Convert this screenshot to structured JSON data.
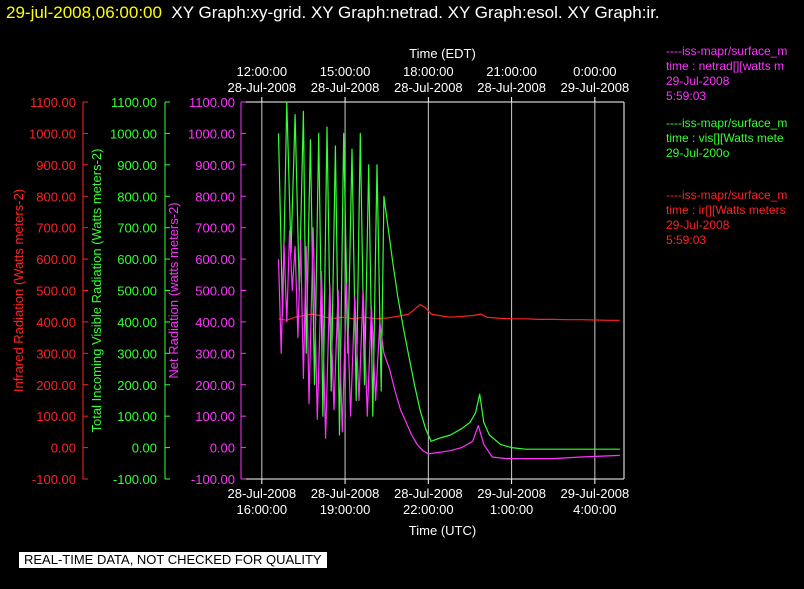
{
  "header": {
    "timestamp": "29-jul-2008,06:00:00",
    "titles": "XY Graph:xy-grid.  XY Graph:netrad.  XY Graph:esol.  XY Graph:ir."
  },
  "legend": [
    {
      "color": "#ff33ff",
      "lines": [
        "----iss-mapr/surface_m",
        "time : netrad[][watts m",
        "29-Jul-2008",
        "5:59:03"
      ]
    },
    {
      "color": "#33ff33",
      "lines": [
        "----iss-mapr/surface_m",
        "time : vis[][Watts mete",
        "29-Jul-200o"
      ]
    },
    {
      "color": "#ff2222",
      "lines": [
        "----iss-mapr/surface_m",
        "time : ir[][Watts meters",
        "29-Jul-2008",
        "5:59:03"
      ]
    }
  ],
  "notice": "REAL-TIME DATA, NOT CHECKED FOR QUALITY",
  "chart_data": {
    "type": "line",
    "top_axis_title": "Time (EDT)",
    "bottom_axis_title": "Time (UTC)",
    "x_range_utc_hours": [
      15.25,
      29.05
    ],
    "top_ticks": [
      {
        "h": 16,
        "lines": [
          "12:00:00",
          "28-Jul-2008"
        ]
      },
      {
        "h": 19,
        "lines": [
          "15:00:00",
          "28-Jul-2008"
        ]
      },
      {
        "h": 22,
        "lines": [
          "18:00:00",
          "28-Jul-2008"
        ]
      },
      {
        "h": 25,
        "lines": [
          "21:00:00",
          "28-Jul-2008"
        ]
      },
      {
        "h": 28,
        "lines": [
          "0:00:00",
          "29-Jul-2008"
        ]
      }
    ],
    "bottom_ticks": [
      {
        "h": 16,
        "lines": [
          "28-Jul-2008",
          "16:00:00"
        ]
      },
      {
        "h": 19,
        "lines": [
          "28-Jul-2008",
          "19:00:00"
        ]
      },
      {
        "h": 22,
        "lines": [
          "28-Jul-2008",
          "22:00:00"
        ]
      },
      {
        "h": 25,
        "lines": [
          "29-Jul-2008",
          "1:00:00"
        ]
      },
      {
        "h": 28,
        "lines": [
          "29-Jul-2008",
          "4:00:00"
        ]
      }
    ],
    "y_range": [
      -100,
      1100
    ],
    "y_ticks": [
      -100,
      0,
      100,
      200,
      300,
      400,
      500,
      600,
      700,
      800,
      900,
      1000,
      1100
    ],
    "grid": "vertical",
    "y_axes": [
      {
        "label": "Infrared Radiation (Watts meters-2)",
        "color": "#ff2222"
      },
      {
        "label": "Total Incoming Visible Radiation (Watts meters-2)",
        "color": "#33ff33"
      },
      {
        "label": "Net Radiation (watts meters-2)",
        "color": "#ff33ff"
      }
    ],
    "series": [
      {
        "key": "ir",
        "color": "#ff2222",
        "points": [
          [
            16.6,
            410
          ],
          [
            16.9,
            405
          ],
          [
            17.2,
            415
          ],
          [
            17.5,
            420
          ],
          [
            17.8,
            425
          ],
          [
            18.1,
            420
          ],
          [
            18.5,
            410
          ],
          [
            18.9,
            415
          ],
          [
            19.3,
            410
          ],
          [
            19.7,
            415
          ],
          [
            20.1,
            410
          ],
          [
            20.5,
            412
          ],
          [
            20.9,
            418
          ],
          [
            21.3,
            425
          ],
          [
            21.5,
            440
          ],
          [
            21.7,
            455
          ],
          [
            21.9,
            445
          ],
          [
            22.1,
            425
          ],
          [
            22.4,
            420
          ],
          [
            22.8,
            415
          ],
          [
            23.2,
            418
          ],
          [
            23.6,
            420
          ],
          [
            23.9,
            425
          ],
          [
            24.1,
            415
          ],
          [
            24.5,
            412
          ],
          [
            25.0,
            410
          ],
          [
            25.5,
            410
          ],
          [
            26.0,
            408
          ],
          [
            26.5,
            408
          ],
          [
            27.0,
            407
          ],
          [
            27.5,
            407
          ],
          [
            28.0,
            406
          ],
          [
            28.5,
            405
          ],
          [
            28.9,
            405
          ]
        ]
      },
      {
        "key": "vis",
        "color": "#33ff33",
        "points": [
          [
            16.6,
            1000
          ],
          [
            16.75,
            420
          ],
          [
            16.9,
            1100
          ],
          [
            17.05,
            620
          ],
          [
            17.2,
            1060
          ],
          [
            17.35,
            500
          ],
          [
            17.5,
            1070
          ],
          [
            17.6,
            300
          ],
          [
            17.75,
            980
          ],
          [
            17.9,
            200
          ],
          [
            18.05,
            1000
          ],
          [
            18.2,
            100
          ],
          [
            18.35,
            1020
          ],
          [
            18.5,
            180
          ],
          [
            18.65,
            960
          ],
          [
            18.8,
            40
          ],
          [
            18.95,
            1000
          ],
          [
            19.1,
            300
          ],
          [
            19.25,
            950
          ],
          [
            19.4,
            150
          ],
          [
            19.55,
            1000
          ],
          [
            19.7,
            200
          ],
          [
            19.85,
            900
          ],
          [
            20.0,
            100
          ],
          [
            20.15,
            900
          ],
          [
            20.3,
            180
          ],
          [
            20.4,
            800
          ],
          [
            20.55,
            700
          ],
          [
            20.7,
            600
          ],
          [
            20.9,
            480
          ],
          [
            21.1,
            380
          ],
          [
            21.3,
            290
          ],
          [
            21.5,
            200
          ],
          [
            21.7,
            120
          ],
          [
            21.9,
            60
          ],
          [
            22.1,
            20
          ],
          [
            22.4,
            30
          ],
          [
            22.8,
            40
          ],
          [
            23.2,
            60
          ],
          [
            23.5,
            80
          ],
          [
            23.7,
            110
          ],
          [
            23.85,
            170
          ],
          [
            24.0,
            80
          ],
          [
            24.2,
            40
          ],
          [
            24.6,
            10
          ],
          [
            25.0,
            0
          ],
          [
            25.5,
            -5
          ],
          [
            26.0,
            -5
          ],
          [
            27.0,
            -5
          ],
          [
            28.0,
            -5
          ],
          [
            28.9,
            -5
          ]
        ]
      },
      {
        "key": "netrad",
        "color": "#ff33ff",
        "points": [
          [
            16.6,
            600
          ],
          [
            16.7,
            300
          ],
          [
            16.8,
            650
          ],
          [
            16.9,
            400
          ],
          [
            17.0,
            690
          ],
          [
            17.1,
            500
          ],
          [
            17.2,
            640
          ],
          [
            17.3,
            350
          ],
          [
            17.4,
            660
          ],
          [
            17.5,
            220
          ],
          [
            17.6,
            640
          ],
          [
            17.7,
            140
          ],
          [
            17.85,
            700
          ],
          [
            18.0,
            90
          ],
          [
            18.15,
            560
          ],
          [
            18.3,
            30
          ],
          [
            18.45,
            520
          ],
          [
            18.6,
            120
          ],
          [
            18.75,
            500
          ],
          [
            18.9,
            50
          ],
          [
            19.05,
            520
          ],
          [
            19.2,
            100
          ],
          [
            19.35,
            480
          ],
          [
            19.5,
            150
          ],
          [
            19.65,
            500
          ],
          [
            19.8,
            100
          ],
          [
            19.95,
            450
          ],
          [
            20.1,
            150
          ],
          [
            20.25,
            400
          ],
          [
            20.4,
            300
          ],
          [
            20.6,
            250
          ],
          [
            20.8,
            180
          ],
          [
            21.0,
            120
          ],
          [
            21.2,
            80
          ],
          [
            21.4,
            40
          ],
          [
            21.6,
            10
          ],
          [
            21.8,
            -10
          ],
          [
            22.0,
            -20
          ],
          [
            22.4,
            -15
          ],
          [
            22.8,
            -10
          ],
          [
            23.2,
            0
          ],
          [
            23.6,
            20
          ],
          [
            23.8,
            70
          ],
          [
            24.0,
            10
          ],
          [
            24.3,
            -30
          ],
          [
            24.8,
            -35
          ],
          [
            25.5,
            -35
          ],
          [
            26.5,
            -35
          ],
          [
            27.5,
            -30
          ],
          [
            28.9,
            -25
          ]
        ]
      }
    ]
  }
}
